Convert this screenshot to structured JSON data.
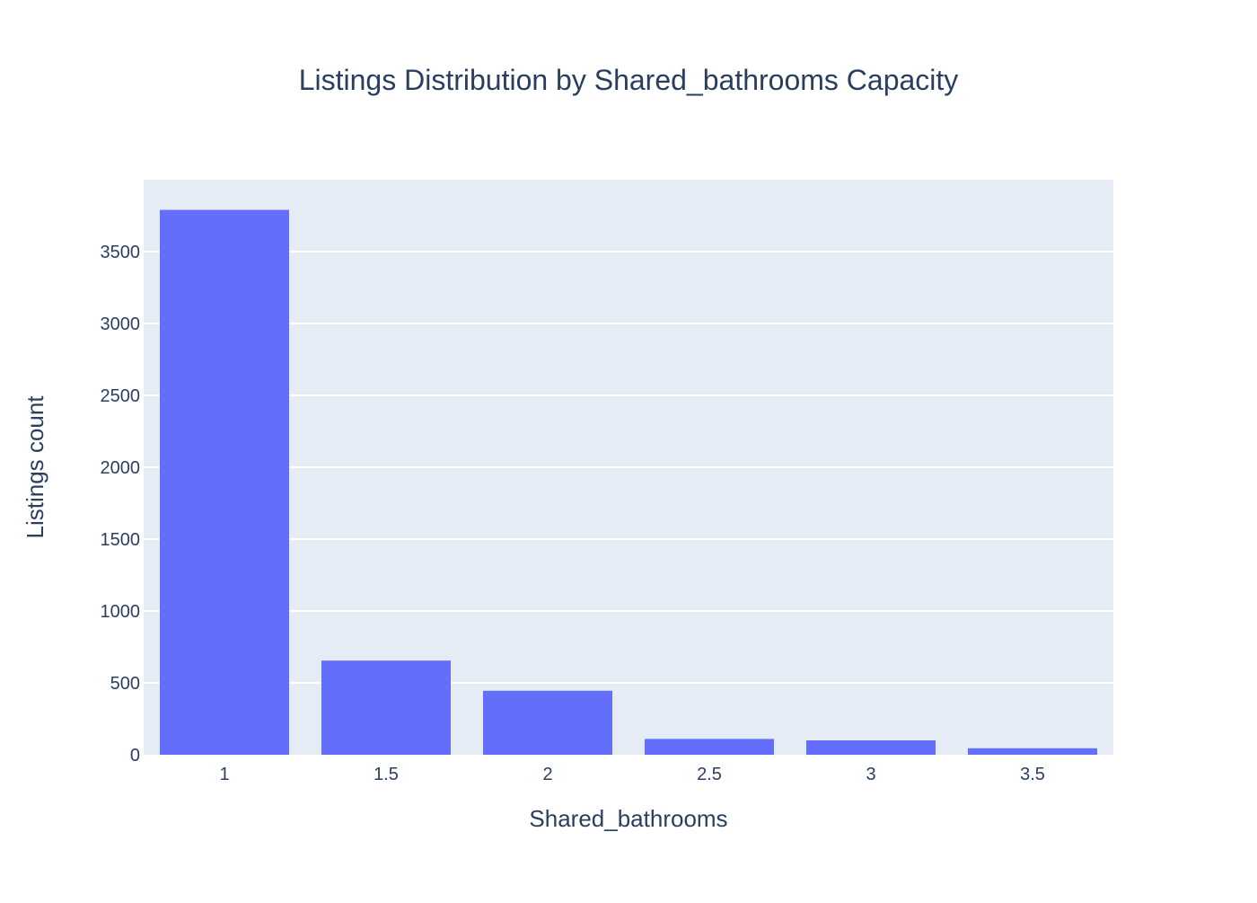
{
  "chart_data": {
    "type": "bar",
    "title": "Listings Distribution by Shared_bathrooms Capacity",
    "xlabel": "Shared_bathrooms",
    "ylabel": "Listings count",
    "categories": [
      "1",
      "1.5",
      "2",
      "2.5",
      "3",
      "3.5"
    ],
    "values": [
      3790,
      655,
      445,
      110,
      100,
      45
    ],
    "ylim": [
      0,
      4000
    ],
    "yticks": [
      0,
      500,
      1000,
      1500,
      2000,
      2500,
      3000,
      3500
    ],
    "grid": true,
    "legend": "none",
    "colors": {
      "bar": "#636efa",
      "plot_background": "#e5ecf6",
      "gridline": "#ffffff",
      "text": "#2a3f5f"
    }
  }
}
